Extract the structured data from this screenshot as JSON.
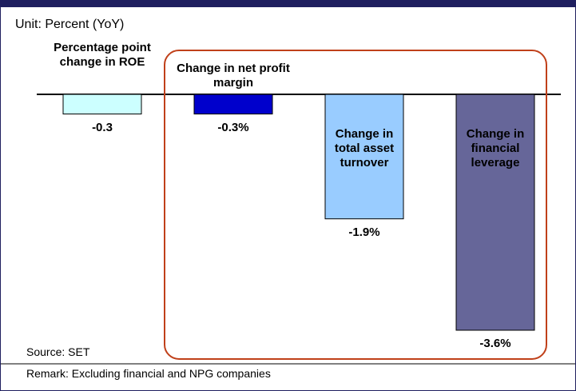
{
  "chart_data": {
    "type": "bar",
    "subtitle": "Unit: Percent (YoY)",
    "categories": [
      "Percentage point change in ROE",
      "Change in net profit margin",
      "Change in total asset turnover",
      "Change in financial leverage"
    ],
    "values": [
      -0.3,
      -0.3,
      -1.9,
      -3.6
    ],
    "value_labels": [
      "-0.3",
      "-0.3%",
      "-1.9%",
      "-3.6%"
    ],
    "colors": [
      "#ccffff",
      "#0000cc",
      "#99ccff",
      "#666699"
    ],
    "source": "Source: SET",
    "remark": "Remark: Excluding financial and NPG companies"
  }
}
